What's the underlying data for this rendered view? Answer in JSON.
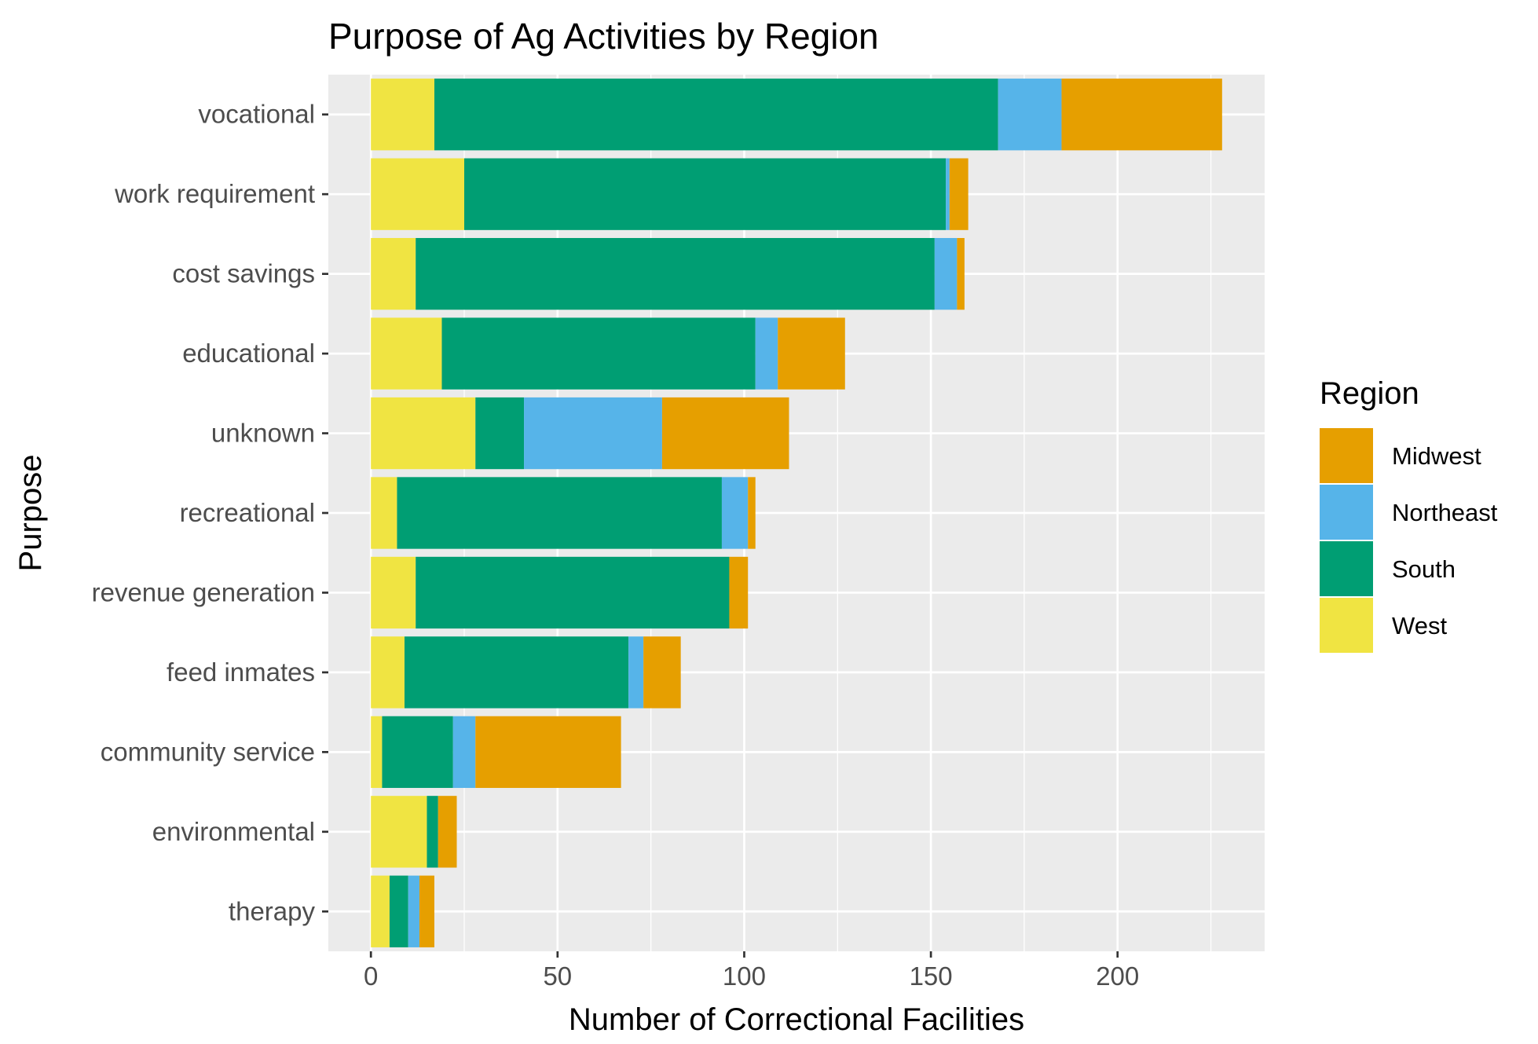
{
  "chart_data": {
    "type": "bar",
    "orientation": "horizontal",
    "stacked": true,
    "title": "Purpose of Ag Activities by Region",
    "xlabel": "Number of Correctional Facilities",
    "ylabel": "Purpose",
    "xlim": [
      -11.4,
      239.4
    ],
    "xticks": [
      0,
      50,
      100,
      150,
      200
    ],
    "grid": true,
    "categories": [
      "vocational",
      "work requirement",
      "cost savings",
      "educational",
      "unknown",
      "recreational",
      "revenue generation",
      "feed inmates",
      "community service",
      "environmental",
      "therapy"
    ],
    "series": [
      {
        "name": "West",
        "color": "#F0E442",
        "values": [
          17,
          25,
          12,
          19,
          28,
          7,
          12,
          9,
          3,
          15,
          5
        ]
      },
      {
        "name": "South",
        "color": "#009E73",
        "values": [
          151,
          129,
          139,
          84,
          13,
          87,
          84,
          60,
          19,
          3,
          5
        ]
      },
      {
        "name": "Northeast",
        "color": "#56B4E9",
        "values": [
          17,
          1,
          6,
          6,
          37,
          7,
          0,
          4,
          6,
          0,
          3
        ]
      },
      {
        "name": "Midwest",
        "color": "#E69F00",
        "values": [
          43,
          5,
          2,
          18,
          34,
          2,
          5,
          10,
          39,
          5,
          4
        ]
      }
    ],
    "legend": {
      "title": "Region",
      "position": "right",
      "order": [
        "Midwest",
        "Northeast",
        "South",
        "West"
      ]
    },
    "panel_background": "#EBEBEB",
    "grid_color": "#FFFFFF",
    "tick_color": "#333333"
  }
}
